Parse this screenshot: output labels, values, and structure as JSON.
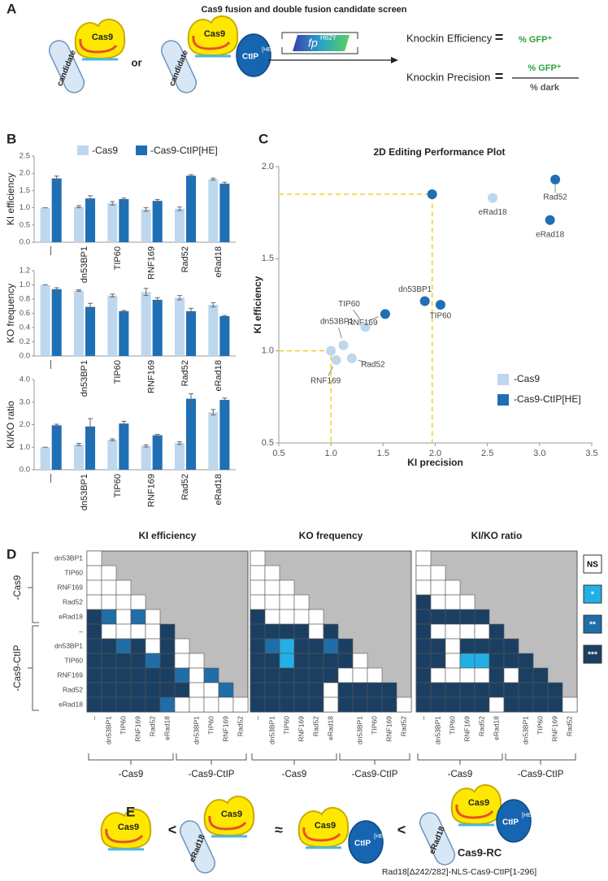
{
  "panel_labels": [
    "A",
    "B",
    "C",
    "D",
    "E"
  ],
  "panel_a": {
    "title": "Cas9 fusion and double fusion candidate screen",
    "cas9": "Cas9",
    "candidate": "candidate",
    "or": "or",
    "ctip": "CtIP",
    "ctip_sup": "[HE]",
    "fp": "fp",
    "fp_sup": "H62Y",
    "efficiency_label": "Knockin Efficiency",
    "equals": "=",
    "efficiency_value": "% GFP⁺",
    "precision_label": "Knockin Precision",
    "precision_num": "% GFP⁺",
    "precision_den": "% dark"
  },
  "chart_data": [
    {
      "type": "bar",
      "ylabel": "KI efficiency",
      "categories": [
        "—",
        "dn53BP1",
        "TIP60",
        "RNF169",
        "Rad52",
        "eRad18"
      ],
      "ylim": [
        0,
        2.5
      ],
      "yticks": [
        {
          "value": 0,
          "label": "0.0"
        },
        {
          "value": 0.5,
          "label": "0.5"
        },
        {
          "value": 1,
          "label": "1.0"
        },
        {
          "value": 1.5,
          "label": "1.5"
        },
        {
          "value": 2,
          "label": "2.0"
        },
        {
          "value": 2.5,
          "label": "2.5"
        }
      ],
      "series": [
        {
          "name": "-Cas9",
          "color": "#bdd7ee",
          "values": [
            1.0,
            1.03,
            1.13,
            0.95,
            0.97,
            1.83
          ],
          "errors": [
            0,
            0.03,
            0.05,
            0.05,
            0.05,
            0.03
          ]
        },
        {
          "name": "-Cas9-CtIP[HE]",
          "color": "#1f6fb5",
          "values": [
            1.85,
            1.27,
            1.25,
            1.2,
            1.93,
            1.7
          ],
          "errors": [
            0.07,
            0.08,
            0.03,
            0.04,
            0.03,
            0.04
          ]
        }
      ]
    },
    {
      "type": "bar",
      "ylabel": "KO frequency",
      "categories": [
        "—",
        "dn53BP1",
        "TIP60",
        "RNF169",
        "Rad52",
        "eRad18"
      ],
      "ylim": [
        0,
        1.2
      ],
      "yticks": [
        {
          "value": 0,
          "label": "0.0"
        },
        {
          "value": 0.2,
          "label": "0.2"
        },
        {
          "value": 0.4,
          "label": "0.4"
        },
        {
          "value": 0.6,
          "label": "0.6"
        },
        {
          "value": 0.8,
          "label": "0.8"
        },
        {
          "value": 1,
          "label": "1.0"
        },
        {
          "value": 1.2,
          "label": "1.2"
        }
      ],
      "series": [
        {
          "color": "#bdd7ee",
          "values": [
            1.0,
            0.92,
            0.85,
            0.9,
            0.82,
            0.72
          ],
          "errors": [
            0,
            0.01,
            0.02,
            0.05,
            0.03,
            0.03
          ]
        },
        {
          "color": "#1f6fb5",
          "values": [
            0.94,
            0.69,
            0.63,
            0.79,
            0.63,
            0.56
          ],
          "errors": [
            0.02,
            0.05,
            0.01,
            0.03,
            0.04,
            0.01
          ]
        }
      ]
    },
    {
      "type": "bar",
      "ylabel": "KI/KO ratio",
      "categories": [
        "—",
        "dn53BP1",
        "TIP60",
        "RNF169",
        "Rad52",
        "eRad18"
      ],
      "ylim": [
        0,
        4
      ],
      "yticks": [
        {
          "value": 0,
          "label": "0.0"
        },
        {
          "value": 1,
          "label": "1.0"
        },
        {
          "value": 2,
          "label": "2.0"
        },
        {
          "value": 3,
          "label": "3.0"
        },
        {
          "value": 4,
          "label": "4.0"
        }
      ],
      "series": [
        {
          "color": "#bdd7ee",
          "values": [
            1.0,
            1.12,
            1.33,
            1.06,
            1.18,
            2.55
          ],
          "errors": [
            0,
            0.05,
            0.04,
            0.05,
            0.06,
            0.12
          ]
        },
        {
          "color": "#1f6fb5",
          "values": [
            1.97,
            1.92,
            2.05,
            1.53,
            3.15,
            3.1
          ],
          "errors": [
            0.05,
            0.35,
            0.1,
            0.04,
            0.22,
            0.08
          ]
        }
      ]
    },
    {
      "type": "scatter",
      "title": "2D Editing Performance Plot",
      "xlabel": "KI precision",
      "ylabel": "KI efficiency",
      "xlim": [
        0.5,
        3.5
      ],
      "ylim": [
        0.5,
        2.0
      ],
      "xticks": [
        0.5,
        {
          "value": 1,
          "label": "1.0"
        },
        1.5,
        {
          "value": 2,
          "label": "2.0"
        },
        2.5,
        {
          "value": 3,
          "label": "3.0"
        },
        3.5
      ],
      "yticks": [
        0.5,
        {
          "value": 1,
          "label": "1.0"
        },
        1.5,
        {
          "value": 2,
          "label": "2.0"
        }
      ],
      "guides": true,
      "series": [
        {
          "name": "-Cas9",
          "color": "#bdd7ee",
          "x": [
            1.0,
            1.12,
            1.33,
            1.05,
            1.2,
            2.55
          ],
          "values": [
            1.0,
            1.03,
            1.13,
            0.95,
            0.96,
            1.83
          ],
          "labels": [
            null,
            "dn53BP1",
            "TIP60",
            "RNF169",
            "Rad52",
            "eRad18"
          ]
        },
        {
          "name": "-Cas9-CtIP[HE]",
          "color": "#1f6fb5",
          "x": [
            1.97,
            1.9,
            2.05,
            1.52,
            3.15,
            3.1
          ],
          "values": [
            1.85,
            1.27,
            1.25,
            1.2,
            1.93,
            1.71
          ],
          "labels": [
            null,
            "dn53BP1",
            "TIP60",
            "RNF169",
            "Rad52",
            "eRad18"
          ]
        }
      ]
    }
  ],
  "panel_d": {
    "row_groups": [
      "-Cas9",
      "-Cas9-CtIP"
    ],
    "col_groups": [
      "-Cas9",
      "-Cas9-CtIP"
    ],
    "rows": [
      "dn53BP1",
      "TIP60",
      "RNF169",
      "Rad52",
      "eRad18",
      "–",
      "dn53BP1",
      "TIP60",
      "RNF169",
      "Rad52",
      "eRad18"
    ],
    "cols": [
      "–",
      "dn53BP1",
      "TIP60",
      "RNF169",
      "Rad52",
      "eRad18",
      null,
      "dn53BP1",
      "TIP60",
      "RNF169",
      "Rad52"
    ],
    "levels": [
      {
        "label": "NS",
        "color": "#ffffff"
      },
      {
        "label": "*",
        "color": "#22b0e6"
      },
      {
        "label": "**",
        "color": "#1f6ea8"
      },
      {
        "label": "***",
        "color": "#1b3f62"
      }
    ],
    "maps": [
      {
        "title": "KI efficiency",
        "cells": [
          [
            0
          ],
          [
            0,
            0
          ],
          [
            0,
            0,
            0
          ],
          [
            0,
            0,
            0,
            0
          ],
          [
            3,
            2,
            0,
            2,
            0
          ],
          [
            3,
            0,
            0,
            0,
            0,
            3
          ],
          [
            3,
            3,
            2,
            3,
            0,
            3,
            0
          ],
          [
            3,
            3,
            3,
            3,
            2,
            3,
            0,
            0
          ],
          [
            3,
            3,
            3,
            3,
            3,
            3,
            2,
            0,
            2
          ],
          [
            3,
            3,
            3,
            3,
            3,
            3,
            3,
            0,
            0,
            2
          ],
          [
            3,
            3,
            3,
            3,
            3,
            2,
            0,
            0,
            0,
            0,
            0
          ]
        ]
      },
      {
        "title": "KO frequency",
        "cells": [
          [
            0
          ],
          [
            0,
            0
          ],
          [
            0,
            0,
            0
          ],
          [
            0,
            0,
            0,
            0
          ],
          [
            3,
            0,
            0,
            0,
            0
          ],
          [
            3,
            3,
            3,
            3,
            0,
            3
          ],
          [
            3,
            2,
            1,
            3,
            3,
            2,
            3
          ],
          [
            3,
            3,
            1,
            3,
            3,
            3,
            3,
            0
          ],
          [
            3,
            3,
            3,
            3,
            3,
            3,
            0,
            0,
            0
          ],
          [
            3,
            3,
            3,
            3,
            3,
            0,
            3,
            3,
            3,
            3
          ],
          [
            3,
            3,
            3,
            3,
            3,
            0,
            3,
            3,
            3,
            3,
            0
          ]
        ]
      },
      {
        "title": "KI/KO ratio",
        "cells": [
          [
            0
          ],
          [
            0,
            0
          ],
          [
            0,
            0,
            0
          ],
          [
            3,
            0,
            0,
            0
          ],
          [
            3,
            3,
            3,
            3,
            3
          ],
          [
            3,
            0,
            0,
            0,
            0,
            3
          ],
          [
            3,
            3,
            0,
            3,
            3,
            3,
            3
          ],
          [
            3,
            3,
            0,
            1,
            1,
            3,
            3,
            3
          ],
          [
            3,
            0,
            0,
            0,
            0,
            3,
            0,
            3,
            3
          ],
          [
            3,
            3,
            3,
            3,
            3,
            3,
            3,
            3,
            3,
            3
          ],
          [
            3,
            3,
            3,
            3,
            3,
            0,
            3,
            3,
            3,
            3,
            0
          ]
        ]
      }
    ]
  },
  "panel_e": {
    "cas9": "Cas9",
    "erad18": "eRad18",
    "ctip": "CtIP",
    "ctip_sup": "[HE]",
    "less": "<",
    "approx": "≈",
    "name": "Cas9-RC",
    "construct": "Rad18[Δ242/282]-NLS-Cas9-CtIP[1-296]"
  }
}
